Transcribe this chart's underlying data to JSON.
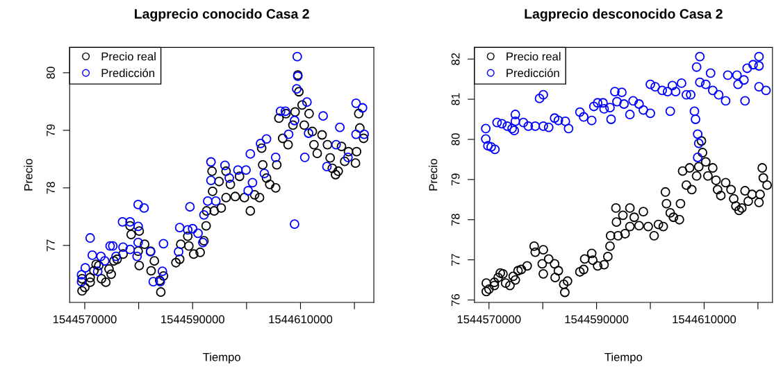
{
  "chart_data": [
    {
      "type": "scatter",
      "title": "Lagprecio conocido Casa 2",
      "xlabel": "Tiempo",
      "ylabel": "Precio",
      "marker": "circle",
      "legend": "top left",
      "grid": false,
      "xlim": [
        1544567200,
        1544623600
      ],
      "ylim": [
        76.01,
        80.44
      ],
      "xticks": [
        1544570000,
        {
          "value": 1544580000,
          "label": null
        },
        1544590000,
        {
          "value": 1544600000,
          "label": null
        },
        1544610000,
        {
          "value": 1544620000,
          "label": null
        }
      ],
      "yticks": [
        77,
        78,
        79,
        80
      ],
      "series": [
        {
          "name": "Precio real",
          "color": "#000000",
          "x": [
            1544569500,
            1544569500,
            1544570000,
            1544571000,
            1544571000,
            1544571700,
            1544572100,
            1544572600,
            1544573100,
            1544573900,
            1544574500,
            1544574900,
            1544575400,
            1544576000,
            1544577100,
            1544578400,
            1544578600,
            1544580100,
            1544579900,
            1544580100,
            1544581100,
            1544582200,
            1544582300,
            1544582900,
            1544583900,
            1544584100,
            1544584600,
            1544586900,
            1544587600,
            1544587800,
            1544589100,
            1544589300,
            1544590200,
            1544591400,
            1544592100,
            1544592500,
            1544592600,
            1544593600,
            1544593700,
            1544594000,
            1544594900,
            1544595300,
            1544596200,
            1544596200,
            1544597000,
            1544597900,
            1544598700,
            1544599600,
            1544600700,
            1544601500,
            1544602400,
            1544602800,
            1544603000,
            1544603700,
            1544604300,
            1544605400,
            1544605600,
            1544606000,
            1544606700,
            1544607300,
            1544607700,
            1544608600,
            1544609000,
            1544609500,
            1544609700,
            1544610300,
            1544610700,
            1544611600,
            1544612200,
            1544612500,
            1544613100,
            1544614000,
            1544615000,
            1544615500,
            1544615900,
            1544616500,
            1544617000,
            1544617600,
            1544618200,
            1544618900,
            1544620200,
            1544620400,
            1544620800,
            1544621000,
            1544621700
          ],
          "values": [
            76.21,
            76.42,
            76.27,
            76.36,
            76.44,
            76.56,
            76.67,
            76.65,
            76.42,
            76.36,
            76.59,
            76.5,
            76.73,
            76.76,
            76.85,
            77.34,
            77.19,
            77.25,
            76.9,
            76.65,
            77.02,
            76.9,
            76.56,
            76.73,
            76.39,
            76.19,
            76.47,
            76.7,
            76.76,
            77.02,
            77.16,
            76.99,
            76.85,
            76.88,
            77.08,
            77.34,
            77.6,
            78.29,
            77.94,
            77.6,
            78.11,
            77.65,
            78.29,
            77.83,
            78.06,
            77.85,
            78.2,
            77.83,
            77.6,
            77.88,
            77.83,
            78.69,
            78.4,
            78.17,
            78.06,
            78.0,
            78.4,
            79.21,
            78.86,
            79.29,
            78.75,
            79.09,
            79.32,
            79.96,
            79.67,
            79.44,
            79.09,
            79.29,
            78.98,
            78.75,
            78.6,
            78.92,
            78.75,
            78.52,
            78.34,
            78.23,
            78.29,
            78.72,
            78.46,
            78.63,
            78.43,
            78.63,
            79.29,
            79.04,
            78.86
          ]
        },
        {
          "name": "Predicción",
          "color": "#0000ff",
          "x": [
            1544569400,
            1544569400,
            1544570100,
            1544571000,
            1544571400,
            1544572400,
            1544573000,
            1544573700,
            1544574700,
            1544575200,
            1544575800,
            1544577000,
            1544577100,
            1544578400,
            1544578400,
            1544579700,
            1544579900,
            1544579900,
            1544581000,
            1544579900,
            1544582200,
            1544582700,
            1544584000,
            1544584400,
            1544584600,
            1544587400,
            1544587600,
            1544589100,
            1544589500,
            1544590000,
            1544591000,
            1544591900,
            1544592100,
            1544593400,
            1544593400,
            1544592800,
            1544594300,
            1544596000,
            1544596800,
            1544598400,
            1544599900,
            1544600300,
            1544600700,
            1544601100,
            1544602600,
            1544603700,
            1544603300,
            1544605400,
            1544606300,
            1544607200,
            1544607800,
            1544608900,
            1544608900,
            1544609300,
            1544609400,
            1544609500,
            1544610800,
            1544611200,
            1544611500,
            1544614200,
            1544614900,
            1544616600,
            1544617300,
            1544618800,
            1544620300,
            1544620300,
            1544621500,
            1544621800
          ],
          "values": [
            76.49,
            76.37,
            76.61,
            77.13,
            76.83,
            76.55,
            76.81,
            76.73,
            76.99,
            76.99,
            76.81,
            77.41,
            76.97,
            77.41,
            76.93,
            76.81,
            77.33,
            77.05,
            77.65,
            77.71,
            76.89,
            76.37,
            76.37,
            76.55,
            77.03,
            76.89,
            77.31,
            77.27,
            77.67,
            77.29,
            77.21,
            77.05,
            77.53,
            78.45,
            78.13,
            77.77,
            77.77,
            78.39,
            78.17,
            78.31,
            78.31,
            77.95,
            78.59,
            78.09,
            78.77,
            78.85,
            78.25,
            78.53,
            79.33,
            79.33,
            78.93,
            79.17,
            77.37,
            79.72,
            80.28,
            79.94,
            78.53,
            79.49,
            78.95,
            79.25,
            78.37,
            78.75,
            79.05,
            78.53,
            79.47,
            78.93,
            79.39,
            78.93
          ]
        }
      ]
    },
    {
      "type": "scatter",
      "title": "Lagprecio desconocido Casa 2",
      "xlabel": "Tiempo",
      "ylabel": "Precio",
      "marker": "circle",
      "legend": "top left",
      "grid": false,
      "xlim": [
        1544567300,
        1544622700
      ],
      "ylim": [
        75.94,
        82.29
      ],
      "xticks": [
        1544570000,
        {
          "value": 1544580000,
          "label": null
        },
        1544590000,
        {
          "value": 1544600000,
          "label": null
        },
        1544610000,
        {
          "value": 1544620000,
          "label": null
        }
      ],
      "yticks": [
        76,
        77,
        78,
        79,
        80,
        81,
        82
      ],
      "series": [
        {
          "name": "Precio real",
          "color": "#000000",
          "x": [
            1544569500,
            1544569500,
            1544570000,
            1544571000,
            1544571000,
            1544571700,
            1544572100,
            1544572600,
            1544573100,
            1544573900,
            1544574500,
            1544574900,
            1544575400,
            1544576000,
            1544577100,
            1544578400,
            1544578600,
            1544580100,
            1544579900,
            1544580100,
            1544581100,
            1544582200,
            1544582300,
            1544582900,
            1544583900,
            1544584100,
            1544584600,
            1544586900,
            1544587600,
            1544587800,
            1544589100,
            1544589300,
            1544590200,
            1544591400,
            1544592100,
            1544592500,
            1544592600,
            1544593600,
            1544593700,
            1544594000,
            1544594900,
            1544595300,
            1544596200,
            1544596200,
            1544597000,
            1544597900,
            1544598700,
            1544599600,
            1544600700,
            1544601500,
            1544602400,
            1544602800,
            1544603000,
            1544603700,
            1544604300,
            1544605400,
            1544605600,
            1544606000,
            1544606700,
            1544607300,
            1544607700,
            1544608600,
            1544609000,
            1544609500,
            1544609700,
            1544610300,
            1544610700,
            1544611600,
            1544612200,
            1544612500,
            1544613100,
            1544614000,
            1544615000,
            1544615500,
            1544615900,
            1544616500,
            1544617000,
            1544617600,
            1544618200,
            1544618900,
            1544620200,
            1544620400,
            1544620800,
            1544621000,
            1544621700
          ],
          "values": [
            76.21,
            76.42,
            76.27,
            76.36,
            76.44,
            76.56,
            76.67,
            76.65,
            76.42,
            76.36,
            76.59,
            76.5,
            76.73,
            76.76,
            76.85,
            77.34,
            77.19,
            77.25,
            76.9,
            76.65,
            77.02,
            76.9,
            76.56,
            76.73,
            76.39,
            76.19,
            76.47,
            76.7,
            76.76,
            77.02,
            77.16,
            76.99,
            76.85,
            76.88,
            77.08,
            77.34,
            77.6,
            78.29,
            77.94,
            77.6,
            78.11,
            77.65,
            78.29,
            77.83,
            78.06,
            77.85,
            78.2,
            77.83,
            77.6,
            77.88,
            77.83,
            78.69,
            78.4,
            78.17,
            78.06,
            78.0,
            78.4,
            79.21,
            78.86,
            79.29,
            78.75,
            79.09,
            79.32,
            79.96,
            79.67,
            79.44,
            79.09,
            79.29,
            78.98,
            78.75,
            78.6,
            78.92,
            78.75,
            78.52,
            78.34,
            78.23,
            78.29,
            78.72,
            78.46,
            78.63,
            78.43,
            78.63,
            79.29,
            79.04,
            78.86
          ]
        },
        {
          "name": "Predicción",
          "color": "#0000ff",
          "x": [
            1544569400,
            1544569400,
            1544569800,
            1544570400,
            1544571100,
            1544571500,
            1544572400,
            1544573400,
            1544574300,
            1544574700,
            1544574900,
            1544574900,
            1544576400,
            1544577300,
            1544578600,
            1544579400,
            1544580100,
            1544580100,
            1544581100,
            1544582200,
            1544582900,
            1544584200,
            1544584800,
            1544586900,
            1544587600,
            1544589100,
            1544589500,
            1544590200,
            1544591200,
            1544591400,
            1544592500,
            1544592700,
            1544593400,
            1544593800,
            1544594700,
            1544595100,
            1544596200,
            1544596800,
            1544597900,
            1544598700,
            1544600000,
            1544600000,
            1544600900,
            1544602200,
            1544603200,
            1544603700,
            1544604100,
            1544604700,
            1544605800,
            1544606700,
            1544607500,
            1544608200,
            1544608400,
            1544608800,
            1544609000,
            1544608800,
            1544608600,
            1544609200,
            1544609200,
            1544610300,
            1544611200,
            1544611600,
            1544612700,
            1544614000,
            1544614400,
            1544616100,
            1544616300,
            1544617400,
            1544617600,
            1544618000,
            1544619100,
            1544620200,
            1544620200,
            1544620200,
            1544621500
          ],
          "values": [
            80.27,
            80.01,
            79.84,
            79.81,
            79.75,
            80.42,
            80.39,
            80.33,
            80.27,
            80.22,
            80.62,
            80.45,
            80.42,
            80.33,
            80.33,
            81.02,
            81.11,
            80.33,
            80.3,
            80.53,
            80.47,
            80.45,
            80.27,
            80.68,
            80.56,
            80.47,
            80.82,
            80.91,
            80.91,
            80.76,
            80.79,
            80.5,
            81.19,
            80.94,
            81.17,
            80.88,
            80.62,
            80.96,
            80.88,
            80.73,
            80.65,
            81.37,
            81.31,
            81.22,
            81.19,
            80.7,
            81.34,
            81.19,
            81.4,
            81.11,
            81.11,
            80.7,
            80.5,
            80.13,
            79.9,
            79.55,
            81.8,
            82.06,
            81.42,
            81.37,
            81.65,
            81.22,
            81.11,
            80.96,
            81.6,
            81.6,
            81.37,
            81.48,
            80.96,
            81.77,
            81.86,
            82.06,
            81.83,
            81.31,
            81.22
          ]
        }
      ]
    }
  ]
}
